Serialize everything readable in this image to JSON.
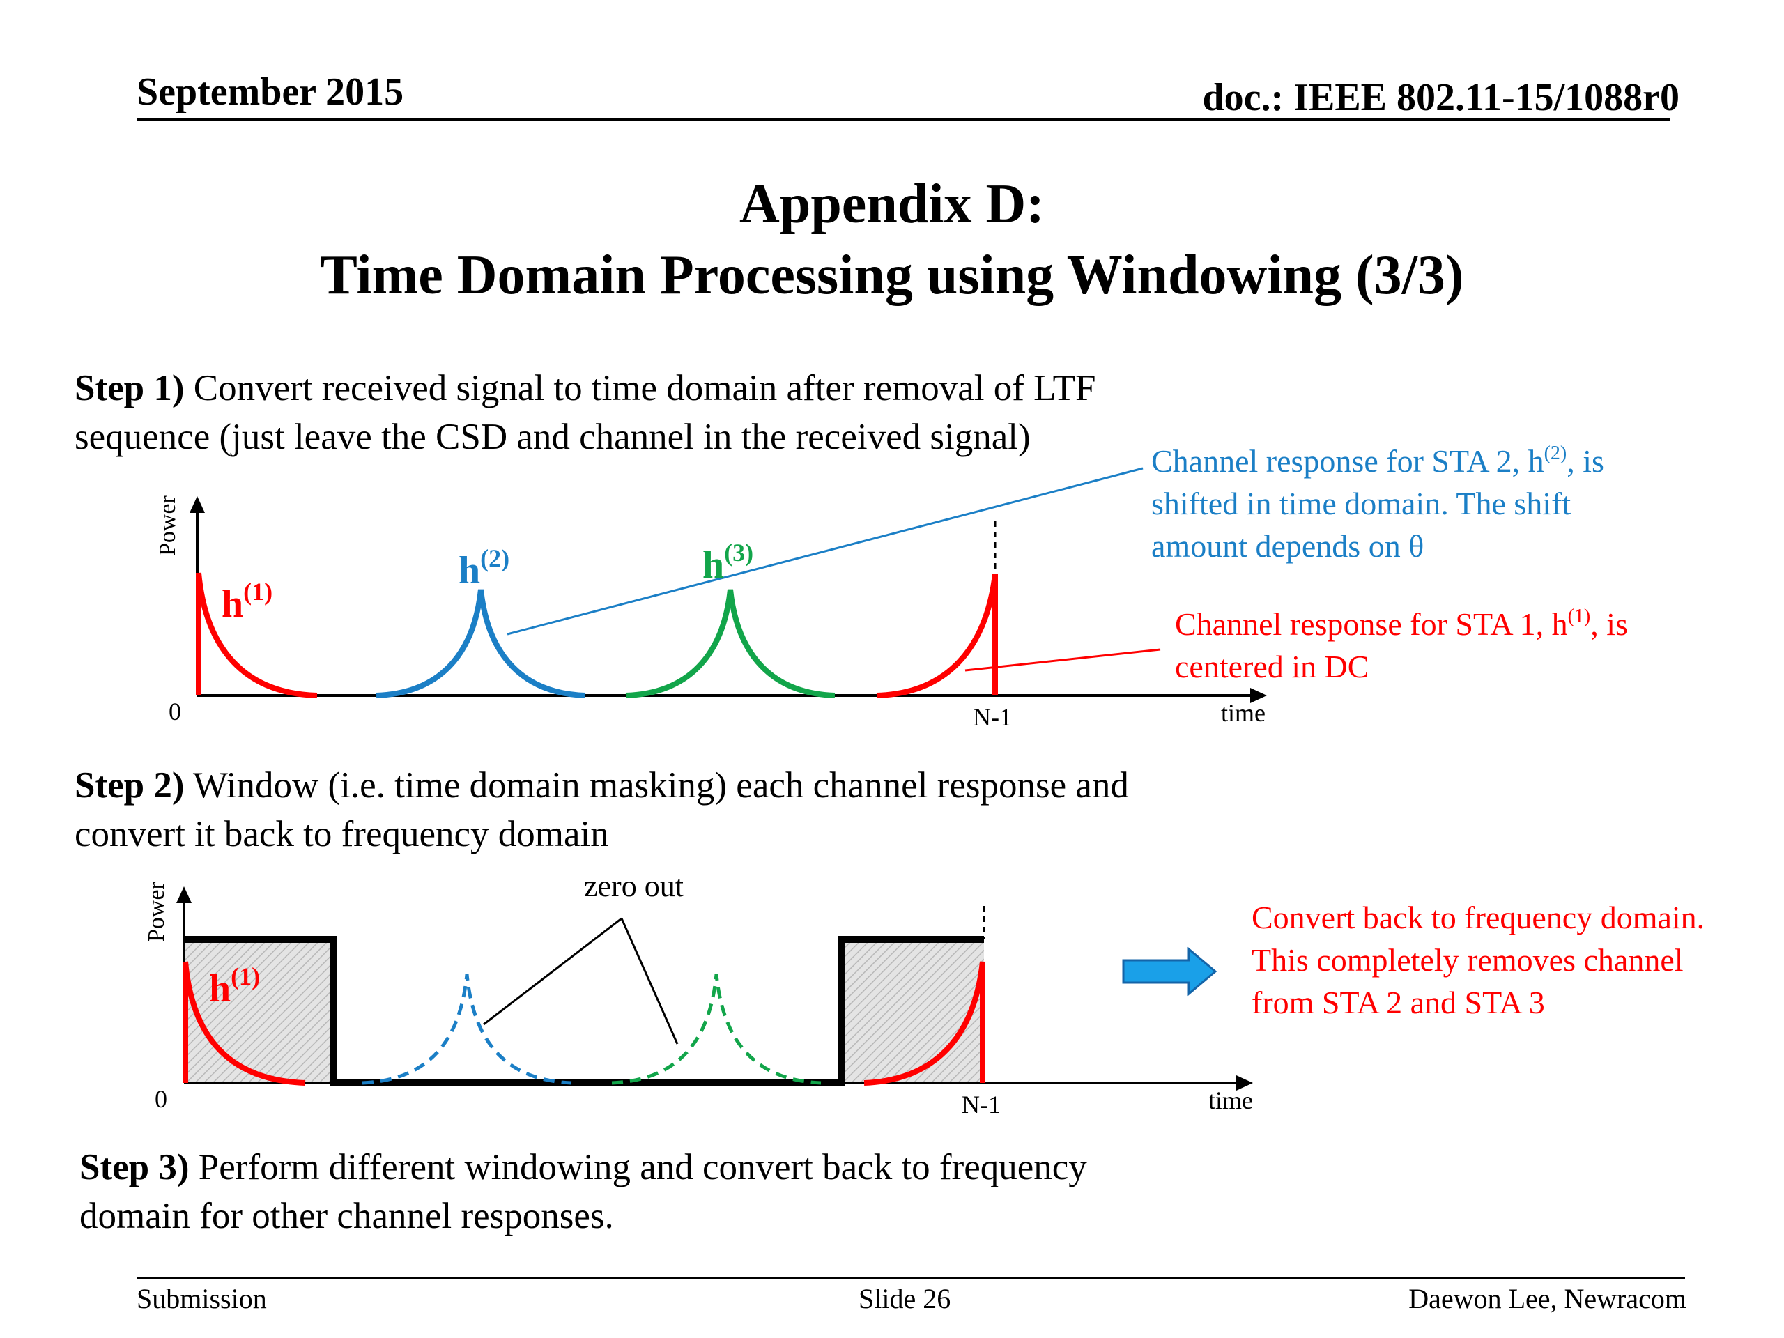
{
  "header": {
    "date": "September 2015",
    "doc": "doc.: IEEE 802.11-15/1088r0"
  },
  "title": {
    "line1": "Appendix D:",
    "line2": "Time Domain Processing using Windowing (3/3)"
  },
  "step1": {
    "label": "Step 1",
    "paren": ")",
    "text_line1": " Convert received signal to time domain after removal of LTF",
    "text_line2": "sequence (just leave the CSD and channel in the received signal)"
  },
  "step2": {
    "label": "Step 2",
    "paren": ")",
    "text_line1": " Window (i.e. time domain masking) each channel response and",
    "text_line2": "convert it back to frequency domain"
  },
  "step3": {
    "label": "Step 3",
    "paren": ")",
    "text_line1": " Perform different windowing and convert back to frequency",
    "text_line2": "domain for other channel responses."
  },
  "diagram1": {
    "y_axis": "Power",
    "x_axis": "time",
    "origin": "0",
    "n_minus_1": "N-1",
    "h1": {
      "base": "h",
      "sup": "(1)"
    },
    "h2": {
      "base": "h",
      "sup": "(2)"
    },
    "h3": {
      "base": "h",
      "sup": "(3)"
    },
    "note_sta2": {
      "line1_pre": "Channel response for STA 2, h",
      "line1_sup": "(2)",
      "line1_post": ", is",
      "line2": "shifted in time domain. The shift",
      "line3": "amount depends on θ"
    },
    "note_sta1": {
      "line1_pre": "Channel response for STA 1, h",
      "line1_sup": "(1)",
      "line1_post": ", is",
      "line2": "centered in DC"
    }
  },
  "diagram2": {
    "y_axis": "Power",
    "x_axis": "time",
    "origin": "0",
    "n_minus_1": "N-1",
    "zero_out": "zero out",
    "h1": {
      "base": "h",
      "sup": "(1)"
    },
    "note": {
      "line1": "Convert back to frequency domain.",
      "line2": "This completely removes channel",
      "line3": "from STA 2 and STA 3"
    }
  },
  "footer": {
    "left": "Submission",
    "center": "Slide 26",
    "right": "Daewon Lee, Newracom"
  },
  "colors": {
    "red": "#ff0000",
    "blue": "#1b7fc6",
    "green": "#12a54a",
    "arrow_fill": "#1aa0e8"
  }
}
